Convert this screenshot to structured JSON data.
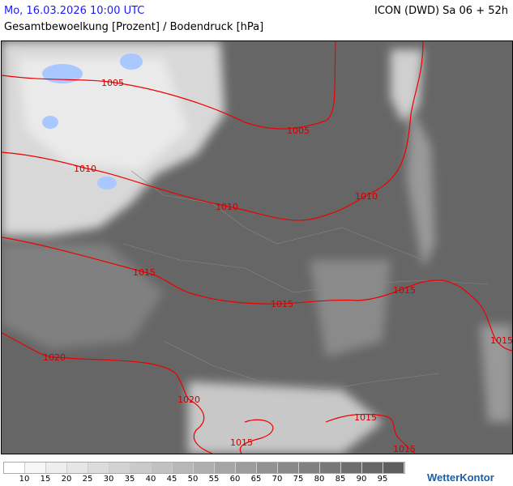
{
  "header": {
    "datetime": "Mo, 16.03.2026 10:00 UTC",
    "model": "ICON (DWD) Sa 06 + 52h",
    "parameter": "Gesamtbewoelkung [Prozent] / Bodendruck [hPa]"
  },
  "map": {
    "background_color": "#666666",
    "isobar_color": "#e00000",
    "isobar_labels": [
      "1005",
      "1005",
      "1010",
      "1010",
      "1010",
      "1015",
      "1015",
      "1015",
      "1015",
      "1020",
      "1020",
      "1015",
      "1015",
      "1015"
    ]
  },
  "legend": {
    "colors": [
      "#ffffff",
      "#f6f6f6",
      "#eeeeee",
      "#e6e6e6",
      "#dcdcdc",
      "#d3d3d3",
      "#cacaca",
      "#c1c1c1",
      "#b7b7b7",
      "#aeaeae",
      "#a5a5a5",
      "#9c9c9c",
      "#929292",
      "#898989",
      "#808080",
      "#777777",
      "#6e6e6e",
      "#666666",
      "#5e5e5e"
    ],
    "ticks": [
      "10",
      "15",
      "20",
      "25",
      "30",
      "35",
      "40",
      "45",
      "50",
      "55",
      "60",
      "65",
      "70",
      "75",
      "80",
      "85",
      "90",
      "95"
    ]
  },
  "logo": "WetterKontor"
}
